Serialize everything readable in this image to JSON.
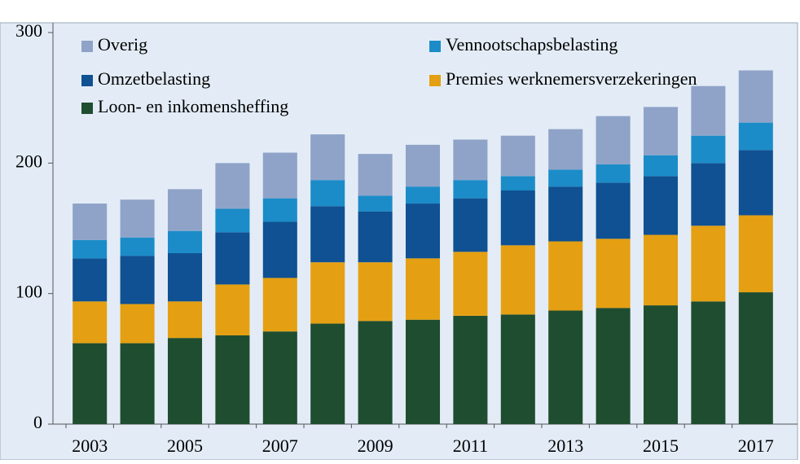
{
  "chart_data": {
    "type": "stacked-bar",
    "categories": [
      "2003",
      null,
      "2005",
      null,
      "2007",
      null,
      "2009",
      null,
      "2011",
      null,
      "2013",
      null,
      "2015",
      null,
      "2017"
    ],
    "series": [
      {
        "name": "Loon- en inkomensheffing",
        "color": "#1f4d30",
        "values": [
          62,
          62,
          66,
          68,
          71,
          77,
          79,
          80,
          83,
          84,
          87,
          89,
          91,
          94,
          101
        ]
      },
      {
        "name": "Premies werknemersverzekeringen",
        "color": "#e4a012",
        "values": [
          32,
          30,
          28,
          39,
          41,
          47,
          45,
          47,
          49,
          53,
          53,
          53,
          54,
          58,
          59
        ]
      },
      {
        "name": "Omzetbelasting",
        "color": "#0f5192",
        "values": [
          33,
          37,
          37,
          40,
          43,
          43,
          39,
          42,
          41,
          42,
          42,
          43,
          45,
          48,
          50
        ]
      },
      {
        "name": "Vennootschapsbelasting",
        "color": "#1b8cc8",
        "values": [
          14,
          14,
          17,
          18,
          18,
          20,
          12,
          13,
          14,
          11,
          13,
          14,
          16,
          21,
          21
        ]
      },
      {
        "name": "Overig",
        "color": "#8fa3c8",
        "values": [
          28,
          29,
          32,
          35,
          35,
          35,
          32,
          32,
          31,
          31,
          31,
          37,
          37,
          38,
          40
        ]
      }
    ],
    "ylim": [
      0,
      300
    ],
    "yticks": [
      0,
      100,
      200,
      300
    ],
    "grid": false
  }
}
